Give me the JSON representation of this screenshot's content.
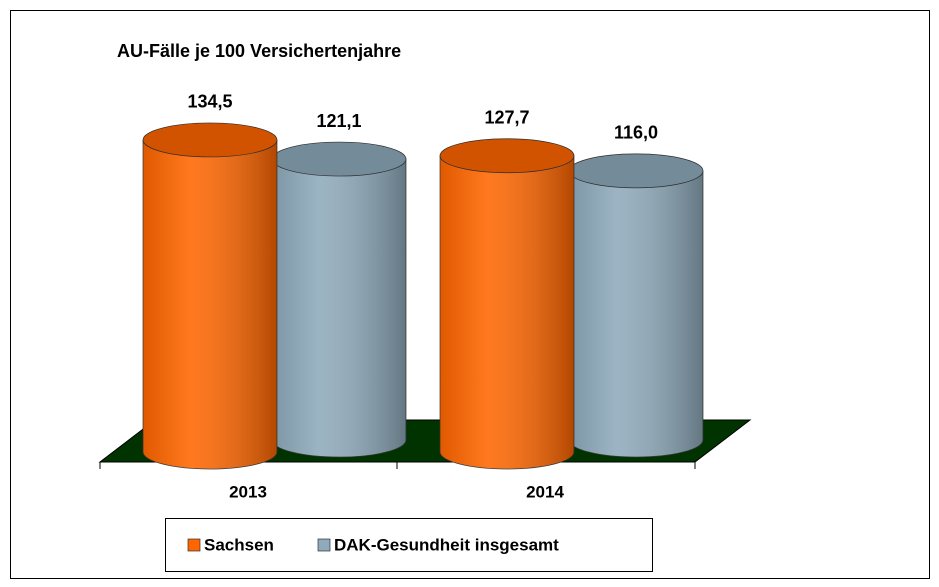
{
  "chart_data": {
    "type": "bar3d",
    "title": "AU-Fälle je 100 Versichertenjahre",
    "categories": [
      "2013",
      "2014"
    ],
    "series": [
      {
        "name": "Sachsen",
        "color": "#ff6600",
        "values": [
          134.5,
          127.7
        ],
        "value_labels": [
          "134,5",
          "127,7"
        ]
      },
      {
        "name": "DAK-Gesundheit insgesamt",
        "color": "#8eaabb",
        "values": [
          121.1,
          116.0
        ],
        "value_labels": [
          "121,1",
          "116,0"
        ]
      }
    ],
    "legend": "bottom"
  }
}
